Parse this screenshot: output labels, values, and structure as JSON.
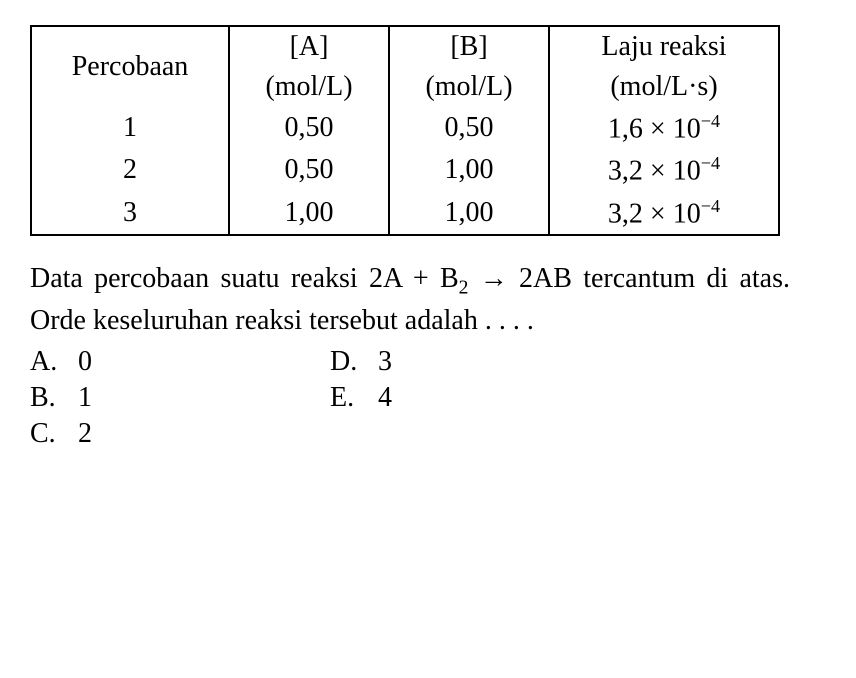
{
  "table": {
    "columns": [
      {
        "line1": "Percobaan",
        "line2": ""
      },
      {
        "line1": "[A]",
        "line2": "(mol/L)"
      },
      {
        "line1": "[B]",
        "line2": "(mol/L)"
      },
      {
        "line1": "Laju reaksi",
        "line2": "(mol/L·s)"
      }
    ],
    "rows": [
      {
        "trial": "1",
        "A": "0,50",
        "B": "0,50",
        "rate_coef": "1,6",
        "rate_exp": "−4"
      },
      {
        "trial": "2",
        "A": "0,50",
        "B": "1,00",
        "rate_coef": "3,2",
        "rate_exp": "−4"
      },
      {
        "trial": "3",
        "A": "1,00",
        "B": "1,00",
        "rate_coef": "3,2",
        "rate_exp": "−4"
      }
    ],
    "border_color": "#000000",
    "background_color": "#ffffff",
    "font_size_pt": 21
  },
  "question": {
    "line1_a": "Data percobaan suatu reaksi 2A + B",
    "line1_sub": "2",
    "line1_b": " → 2AB",
    "line2": "tercantum di atas. Orde keseluruhan reaksi",
    "line3": "tersebut adalah . . . ."
  },
  "options": {
    "A": {
      "letter": "A.",
      "text": "0"
    },
    "B": {
      "letter": "B.",
      "text": "1"
    },
    "C": {
      "letter": "C.",
      "text": "2"
    },
    "D": {
      "letter": "D.",
      "text": "3"
    },
    "E": {
      "letter": "E.",
      "text": "4"
    }
  }
}
